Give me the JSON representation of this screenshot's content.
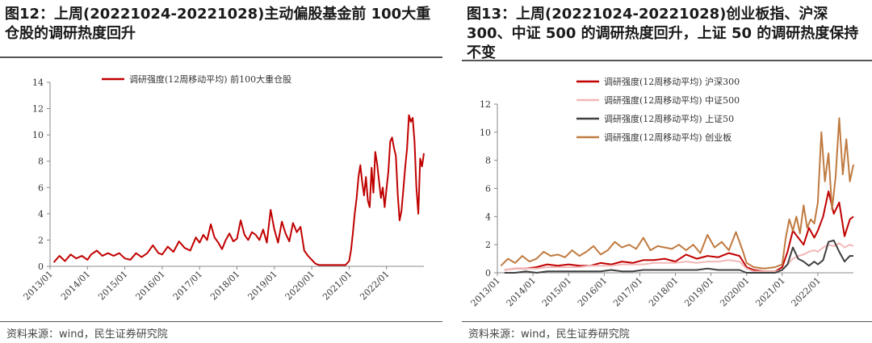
{
  "left": {
    "title": "图12：上周(20221024-20221028)主动偏股基金前 100大重仓股的调研热度回升",
    "source": "资料来源：wind，民生证券研究院",
    "chart_data": {
      "type": "line",
      "ylim": [
        0,
        14
      ],
      "yticks": [
        0,
        2,
        4,
        6,
        8,
        10,
        12,
        14
      ],
      "xticks": [
        "2013/01",
        "2014/01",
        "2015/01",
        "2016/01",
        "2017/01",
        "2018/01",
        "2019/01",
        "2020/01",
        "2021/01",
        "2022/01"
      ],
      "xrange": [
        2013.0,
        2023.0
      ],
      "series": [
        {
          "name": "调研强度(12周移动平均) 前100大重仓股",
          "color": "#c00000",
          "x": [
            2013.1,
            2013.25,
            2013.4,
            2013.55,
            2013.7,
            2013.85,
            2014.0,
            2014.1,
            2014.25,
            2014.4,
            2014.55,
            2014.7,
            2014.85,
            2015.0,
            2015.15,
            2015.3,
            2015.45,
            2015.6,
            2015.75,
            2015.9,
            2016.0,
            2016.15,
            2016.3,
            2016.45,
            2016.6,
            2016.75,
            2016.9,
            2017.0,
            2017.1,
            2017.2,
            2017.3,
            2017.4,
            2017.5,
            2017.6,
            2017.7,
            2017.8,
            2017.9,
            2018.0,
            2018.1,
            2018.2,
            2018.3,
            2018.4,
            2018.5,
            2018.6,
            2018.7,
            2018.8,
            2018.9,
            2019.0,
            2019.1,
            2019.2,
            2019.3,
            2019.4,
            2019.5,
            2019.6,
            2019.7,
            2019.8,
            2019.9,
            2020.0,
            2020.1,
            2020.2,
            2020.3,
            2020.5,
            2020.7,
            2020.9,
            2021.0,
            2021.05,
            2021.1,
            2021.15,
            2021.2,
            2021.25,
            2021.3,
            2021.35,
            2021.4,
            2021.45,
            2021.5,
            2021.55,
            2021.6,
            2021.65,
            2021.7,
            2021.75,
            2021.8,
            2021.85,
            2021.9,
            2021.95,
            2022.0,
            2022.05,
            2022.1,
            2022.15,
            2022.2,
            2022.25,
            2022.3,
            2022.35,
            2022.4,
            2022.45,
            2022.5,
            2022.55,
            2022.6,
            2022.65,
            2022.7,
            2022.75,
            2022.8,
            2022.85
          ],
          "y": [
            0.3,
            0.8,
            0.4,
            0.9,
            0.6,
            0.8,
            0.5,
            0.9,
            1.2,
            0.8,
            1.0,
            0.8,
            1.0,
            0.6,
            0.5,
            1.0,
            0.7,
            1.0,
            1.6,
            1.0,
            0.9,
            1.5,
            1.1,
            1.9,
            1.4,
            1.2,
            2.2,
            1.8,
            2.4,
            2.0,
            3.2,
            2.2,
            1.8,
            1.3,
            2.0,
            2.5,
            1.9,
            2.1,
            3.5,
            2.4,
            2.0,
            2.6,
            2.4,
            2.0,
            2.8,
            1.8,
            4.3,
            2.8,
            1.8,
            3.4,
            2.5,
            1.9,
            3.3,
            2.6,
            3.0,
            1.2,
            0.8,
            0.5,
            0.2,
            0.1,
            0.1,
            0.1,
            0.1,
            0.1,
            0.4,
            1.2,
            2.5,
            4.0,
            5.2,
            6.8,
            7.7,
            6.4,
            5.4,
            6.8,
            5.0,
            4.5,
            7.5,
            5.6,
            8.7,
            7.8,
            6.5,
            5.2,
            6.0,
            4.5,
            5.9,
            7.2,
            9.5,
            9.8,
            9.0,
            8.4,
            5.5,
            3.5,
            4.2,
            5.8,
            7.5,
            9.0,
            11.5,
            11.0,
            11.3,
            9.5,
            6.0,
            4.0
          ]
        }
      ]
    },
    "extra_x": [
      2022.9,
      2022.95,
      2023.0
    ],
    "extra_y": [
      8.2,
      7.6,
      8.6
    ]
  },
  "right": {
    "title": "图13：上周(20221024-20221028)创业板指、沪深300、中证 500 的调研热度回升，上证 50 的调研热度保持不变",
    "source": "资料来源：wind，民生证券研究院",
    "chart_data": {
      "type": "line",
      "ylim": [
        0,
        12
      ],
      "yticks": [
        0,
        2,
        4,
        6,
        8,
        10,
        12
      ],
      "xticks": [
        "2013/01",
        "2014/01",
        "2015/01",
        "2016/01",
        "2017/01",
        "2018/01",
        "2019/01",
        "2020/01",
        "2021/01",
        "2022/01"
      ],
      "xrange": [
        2013.0,
        2023.0
      ],
      "series": [
        {
          "name": "调研强度(12周移动平均) 沪深300",
          "color": "#c00000",
          "x": [
            2013.2,
            2013.5,
            2013.8,
            2014.1,
            2014.4,
            2014.7,
            2015.0,
            2015.3,
            2015.6,
            2015.9,
            2016.2,
            2016.5,
            2016.8,
            2017.1,
            2017.4,
            2017.7,
            2018.0,
            2018.3,
            2018.6,
            2018.9,
            2019.2,
            2019.5,
            2019.8,
            2020.0,
            2020.2,
            2020.5,
            2020.8,
            2021.0,
            2021.15,
            2021.3,
            2021.45,
            2021.6,
            2021.75,
            2021.9,
            2022.0,
            2022.15,
            2022.3,
            2022.45,
            2022.6,
            2022.75,
            2022.9,
            2023.0
          ],
          "y": [
            0.2,
            0.3,
            0.3,
            0.4,
            0.6,
            0.5,
            0.6,
            0.5,
            0.5,
            0.7,
            0.6,
            0.8,
            0.7,
            0.9,
            0.9,
            1.0,
            0.8,
            1.3,
            1.0,
            1.2,
            1.1,
            1.4,
            1.2,
            0.4,
            0.2,
            0.1,
            0.1,
            0.4,
            1.5,
            3.0,
            2.5,
            2.0,
            3.2,
            2.5,
            3.0,
            4.0,
            5.8,
            4.2,
            5.0,
            2.6,
            3.8,
            4.0
          ]
        },
        {
          "name": "调研强度(12周移动平均) 中证500",
          "color": "#f2b8b8",
          "x": [
            2013.2,
            2013.5,
            2013.8,
            2014.1,
            2014.4,
            2014.7,
            2015.0,
            2015.3,
            2015.6,
            2015.9,
            2016.2,
            2016.5,
            2016.8,
            2017.1,
            2017.4,
            2017.7,
            2018.0,
            2018.3,
            2018.6,
            2018.9,
            2019.2,
            2019.5,
            2019.8,
            2020.0,
            2020.2,
            2020.5,
            2020.8,
            2021.0,
            2021.15,
            2021.3,
            2021.45,
            2021.6,
            2021.75,
            2021.9,
            2022.0,
            2022.15,
            2022.3,
            2022.45,
            2022.6,
            2022.75,
            2022.9,
            2023.0
          ],
          "y": [
            0.2,
            0.3,
            0.3,
            0.3,
            0.4,
            0.4,
            0.4,
            0.4,
            0.5,
            0.5,
            0.5,
            0.6,
            0.6,
            0.6,
            0.7,
            0.7,
            0.7,
            0.8,
            0.7,
            0.8,
            0.8,
            0.9,
            0.8,
            0.3,
            0.1,
            0.1,
            0.1,
            0.2,
            0.6,
            1.0,
            1.2,
            1.3,
            1.5,
            1.6,
            1.5,
            1.8,
            2.0,
            1.9,
            2.1,
            1.8,
            2.0,
            1.9
          ]
        },
        {
          "name": "调研强度(12周移动平均) 上证50",
          "color": "#404040",
          "x": [
            2013.2,
            2013.5,
            2013.8,
            2014.1,
            2014.4,
            2014.7,
            2015.0,
            2015.3,
            2015.6,
            2015.9,
            2016.2,
            2016.5,
            2016.8,
            2017.1,
            2017.4,
            2017.7,
            2018.0,
            2018.3,
            2018.6,
            2018.9,
            2019.2,
            2019.5,
            2019.8,
            2020.0,
            2020.2,
            2020.5,
            2020.8,
            2021.0,
            2021.15,
            2021.3,
            2021.45,
            2021.6,
            2021.75,
            2021.9,
            2022.0,
            2022.15,
            2022.3,
            2022.45,
            2022.6,
            2022.75,
            2022.9,
            2023.0
          ],
          "y": [
            0.0,
            0.0,
            0.1,
            0.0,
            0.1,
            0.1,
            0.1,
            0.1,
            0.1,
            0.1,
            0.2,
            0.1,
            0.1,
            0.2,
            0.2,
            0.2,
            0.2,
            0.2,
            0.2,
            0.3,
            0.2,
            0.2,
            0.2,
            0.0,
            0.0,
            0.0,
            0.0,
            0.2,
            0.6,
            1.8,
            1.0,
            0.8,
            0.5,
            0.8,
            0.6,
            0.9,
            2.2,
            2.3,
            1.5,
            0.8,
            1.2,
            1.2
          ]
        },
        {
          "name": "调研强度(12周移动平均) 创业板",
          "color": "#c07a40",
          "x": [
            2013.1,
            2013.3,
            2013.5,
            2013.7,
            2013.9,
            2014.1,
            2014.3,
            2014.5,
            2014.7,
            2014.9,
            2015.1,
            2015.3,
            2015.5,
            2015.7,
            2015.9,
            2016.1,
            2016.3,
            2016.5,
            2016.7,
            2016.9,
            2017.1,
            2017.3,
            2017.5,
            2017.7,
            2017.9,
            2018.1,
            2018.3,
            2018.5,
            2018.7,
            2018.9,
            2019.1,
            2019.3,
            2019.5,
            2019.7,
            2019.9,
            2020.0,
            2020.2,
            2020.5,
            2020.8,
            2021.0,
            2021.1,
            2021.2,
            2021.3,
            2021.4,
            2021.5,
            2021.6,
            2021.7,
            2021.8,
            2021.9,
            2022.0,
            2022.1,
            2022.2,
            2022.3,
            2022.4,
            2022.5,
            2022.6,
            2022.7,
            2022.8,
            2022.9,
            2023.0
          ],
          "y": [
            0.5,
            1.0,
            0.7,
            1.2,
            0.8,
            1.0,
            1.5,
            1.2,
            1.3,
            1.1,
            1.6,
            1.2,
            1.5,
            1.9,
            1.3,
            1.6,
            2.2,
            1.8,
            2.0,
            1.7,
            2.5,
            1.6,
            1.9,
            1.8,
            1.7,
            2.0,
            1.6,
            2.0,
            1.4,
            2.7,
            1.8,
            2.2,
            1.6,
            2.9,
            1.5,
            0.7,
            0.4,
            0.3,
            0.4,
            0.6,
            2.5,
            3.8,
            3.0,
            4.0,
            2.8,
            4.8,
            3.2,
            3.8,
            3.5,
            5.0,
            10.0,
            6.5,
            8.5,
            4.5,
            6.8,
            11.0,
            7.0,
            9.5,
            6.5,
            7.7
          ]
        }
      ]
    }
  }
}
